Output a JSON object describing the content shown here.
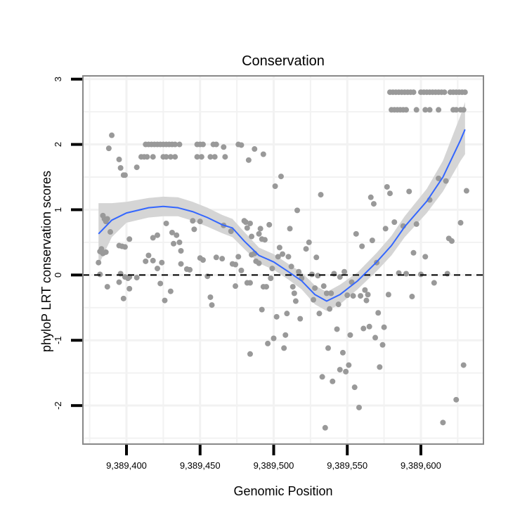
{
  "chart_data": {
    "type": "scatter",
    "title": "Conservation",
    "xlabel": "Genomic Position",
    "ylabel": "phyloP LRT conservation scores",
    "xlim": [
      9389370.4,
      9389642.5
    ],
    "ylim": [
      -2.59,
      3.05
    ],
    "x_ticks": [
      9389400,
      9389450,
      9389500,
      9389550,
      9389600
    ],
    "x_tick_labels": [
      "9,389,400",
      "9,389,450",
      "9,389,500",
      "9,389,550",
      "9,389,600"
    ],
    "y_ticks": [
      -2,
      -1,
      0,
      1,
      2,
      3
    ],
    "y_tick_labels": [
      "-2",
      "-1",
      "0",
      "1",
      "2",
      "3"
    ],
    "grid": true,
    "reference_line": {
      "y": 0,
      "style": "dashed",
      "color": "#000000"
    },
    "colors": {
      "points": "#999999",
      "smooth": "#3366FF",
      "band": "#D3D3D3",
      "border": "#888888"
    },
    "points": [
      [
        9389413,
        2.0
      ],
      [
        9389415,
        2.0
      ],
      [
        9389417,
        2.0
      ],
      [
        9389419,
        2.0
      ],
      [
        9389421,
        2.0
      ],
      [
        9389423,
        2.0
      ],
      [
        9389425,
        2.0
      ],
      [
        9389427,
        2.0
      ],
      [
        9389429,
        2.0
      ],
      [
        9389431,
        2.0
      ],
      [
        9389433,
        2.0
      ],
      [
        9389436,
        2.0
      ],
      [
        9389448,
        2.0
      ],
      [
        9389450,
        2.0
      ],
      [
        9389452,
        2.0
      ],
      [
        9389459,
        2.0
      ],
      [
        9389461,
        2.0
      ],
      [
        9389466,
        1.96
      ],
      [
        9389476,
        2.0
      ],
      [
        9389478,
        1.99
      ],
      [
        9389410,
        1.81
      ],
      [
        9389412,
        1.81
      ],
      [
        9389414,
        1.81
      ],
      [
        9389418,
        1.81
      ],
      [
        9389425,
        1.81
      ],
      [
        9389427,
        1.81
      ],
      [
        9389430,
        1.81
      ],
      [
        9389433,
        1.81
      ],
      [
        9389448,
        1.81
      ],
      [
        9389451,
        1.81
      ],
      [
        9389457,
        1.81
      ],
      [
        9389460,
        1.81
      ],
      [
        9389467,
        1.81
      ],
      [
        9389487,
        1.93
      ],
      [
        9389493,
        1.85
      ],
      [
        9389483,
        1.76
      ],
      [
        9389390,
        2.14
      ],
      [
        9389388,
        1.94
      ],
      [
        9389395,
        1.77
      ],
      [
        9389396,
        1.64
      ],
      [
        9389398,
        1.53
      ],
      [
        9389399,
        1.53
      ],
      [
        9389407,
        1.65
      ],
      [
        9389384,
        0.91
      ],
      [
        9389385,
        0.86
      ],
      [
        9389387,
        0.86
      ],
      [
        9389386,
        0.82
      ],
      [
        9389389,
        0.66
      ],
      [
        9389383,
        0.4
      ],
      [
        9389382,
        0.36
      ],
      [
        9389384,
        0.33
      ],
      [
        9389386,
        0.35
      ],
      [
        9389381,
        0.19
      ],
      [
        9389382,
        0.01
      ],
      [
        9389387,
        -0.18
      ],
      [
        9389395,
        0.45
      ],
      [
        9389397,
        0.44
      ],
      [
        9389399,
        0.43
      ],
      [
        9389402,
        0.55
      ],
      [
        9389396,
        0.02
      ],
      [
        9389399,
        -0.03
      ],
      [
        9389401,
        -0.05
      ],
      [
        9389402,
        -0.03
      ],
      [
        9389395,
        -0.11
      ],
      [
        9389398,
        -0.36
      ],
      [
        9389402,
        -0.21
      ],
      [
        9389407,
        -0.04
      ],
      [
        9389413,
        0.21
      ],
      [
        9389418,
        0.22
      ],
      [
        9389415,
        0.3
      ],
      [
        9389418,
        0.57
      ],
      [
        9389421,
        0.61
      ],
      [
        9389427,
        0.79
      ],
      [
        9389431,
        0.65
      ],
      [
        9389434,
        0.61
      ],
      [
        9389436,
        0.5
      ],
      [
        9389432,
        0.48
      ],
      [
        9389437,
        0.37
      ],
      [
        9389424,
        0.19
      ],
      [
        9389423,
        -0.13
      ],
      [
        9389426,
        -0.39
      ],
      [
        9389421,
        0.1
      ],
      [
        9389430,
        -0.25
      ],
      [
        9389437,
        0.17
      ],
      [
        9389441,
        0.09
      ],
      [
        9389443,
        0.08
      ],
      [
        9389445,
        0.83
      ],
      [
        9389446,
        0.7
      ],
      [
        9389450,
        0.82
      ],
      [
        9389450,
        0.26
      ],
      [
        9389452,
        0.23
      ],
      [
        9389455,
        -0.02
      ],
      [
        9389457,
        -0.34
      ],
      [
        9389458,
        -0.46
      ],
      [
        9389461,
        0.27
      ],
      [
        9389465,
        0.25
      ],
      [
        9389466,
        0.76
      ],
      [
        9389471,
        0.67
      ],
      [
        9389472,
        0.17
      ],
      [
        9389474,
        0.16
      ],
      [
        9389476,
        0.28
      ],
      [
        9389478,
        0.07
      ],
      [
        9389474,
        -0.17
      ],
      [
        9389480,
        0.83
      ],
      [
        9389481,
        0.81
      ],
      [
        9389482,
        0.72
      ],
      [
        9389484,
        0.79
      ],
      [
        9389485,
        0.59
      ],
      [
        9389487,
        0.33
      ],
      [
        9389484,
        -0.12
      ],
      [
        9389488,
        0.21
      ],
      [
        9389490,
        0.18
      ],
      [
        9389490,
        0.63
      ],
      [
        9389492,
        0.55
      ],
      [
        9389493,
        -0.18
      ],
      [
        9389505,
        1.51
      ],
      [
        9389501,
        1.36
      ],
      [
        9389532,
        1.23
      ],
      [
        9389516,
        0.99
      ],
      [
        9389497,
        0.77
      ],
      [
        9389511,
        0.71
      ],
      [
        9389491,
        0.71
      ],
      [
        9389494,
        0.54
      ],
      [
        9389485,
        0.31
      ],
      [
        9389504,
        0.42
      ],
      [
        9389506,
        0.32
      ],
      [
        9389510,
        0.28
      ],
      [
        9389503,
        0.28
      ],
      [
        9389522,
        0.4
      ],
      [
        9389524,
        0.5
      ],
      [
        9389529,
        0.27
      ],
      [
        9389512,
        0.13
      ],
      [
        9389499,
        0.1
      ],
      [
        9389517,
        0.05
      ],
      [
        9389519,
        -0.05
      ],
      [
        9389526,
        0.01
      ],
      [
        9389530,
        -0.01
      ],
      [
        9389498,
        -0.05
      ],
      [
        9389482,
        -0.12
      ],
      [
        9389495,
        -0.18
      ],
      [
        9389513,
        -0.18
      ],
      [
        9389514,
        -0.28
      ],
      [
        9389515,
        -0.4
      ],
      [
        9389528,
        -0.2
      ],
      [
        9389534,
        -0.17
      ],
      [
        9389536,
        -0.28
      ],
      [
        9389539,
        -0.28
      ],
      [
        9389527,
        -0.38
      ],
      [
        9389531,
        -0.59
      ],
      [
        9389538,
        -0.52
      ],
      [
        9389544,
        -0.45
      ],
      [
        9389541,
        0.02
      ],
      [
        9389545,
        -0.03
      ],
      [
        9389548,
        0.05
      ],
      [
        9389553,
        -0.11
      ],
      [
        9389550,
        -0.31
      ],
      [
        9389554,
        -0.32
      ],
      [
        9389559,
        -0.32
      ],
      [
        9389562,
        -0.23
      ],
      [
        9389564,
        -0.3
      ],
      [
        9389563,
        -0.39
      ],
      [
        9389570,
        0.19
      ],
      [
        9389560,
        0.44
      ],
      [
        9389556,
        0.63
      ],
      [
        9389567,
        0.53
      ],
      [
        9389566,
        1.19
      ],
      [
        9389568,
        1.09
      ],
      [
        9389577,
        1.35
      ],
      [
        9389579,
        1.25
      ],
      [
        9389576,
        0.71
      ],
      [
        9389582,
        0.81
      ],
      [
        9389588,
        0.75
      ],
      [
        9389592,
        1.28
      ],
      [
        9389597,
        0.78
      ],
      [
        9389595,
        0.34
      ],
      [
        9389603,
        0.28
      ],
      [
        9389585,
        0.03
      ],
      [
        9389590,
        0.02
      ],
      [
        9389600,
        0.01
      ],
      [
        9389618,
        0.02
      ],
      [
        9389609,
        -0.12
      ],
      [
        9389578,
        -0.3
      ],
      [
        9389594,
        -0.33
      ],
      [
        9389606,
        1.15
      ],
      [
        9389612,
        1.48
      ],
      [
        9389617,
        1.44
      ],
      [
        9389631,
        1.29
      ],
      [
        9389627,
        0.8
      ],
      [
        9389619,
        0.56
      ],
      [
        9389621,
        0.52
      ],
      [
        9389492,
        -0.53
      ],
      [
        9389502,
        -0.64
      ],
      [
        9389509,
        -0.59
      ],
      [
        9389518,
        -0.67
      ],
      [
        9389508,
        -0.92
      ],
      [
        9389500,
        -0.97
      ],
      [
        9389496,
        -1.05
      ],
      [
        9389507,
        -1.12
      ],
      [
        9389484,
        -1.21
      ],
      [
        9389543,
        -0.83
      ],
      [
        9389552,
        -0.92
      ],
      [
        9389537,
        -1.12
      ],
      [
        9389547,
        -1.19
      ],
      [
        9389551,
        -1.38
      ],
      [
        9389545,
        -1.45
      ],
      [
        9389549,
        -1.48
      ],
      [
        9389533,
        -1.56
      ],
      [
        9389540,
        -1.63
      ],
      [
        9389555,
        -1.72
      ],
      [
        9389558,
        -2.03
      ],
      [
        9389535,
        -2.34
      ],
      [
        9389561,
        -0.82
      ],
      [
        9389565,
        -0.79
      ],
      [
        9389571,
        -0.58
      ],
      [
        9389575,
        -0.8
      ],
      [
        9389569,
        -0.96
      ],
      [
        9389574,
        -1.07
      ],
      [
        9389572,
        -1.41
      ],
      [
        9389629,
        -1.38
      ],
      [
        9389624,
        -1.91
      ],
      [
        9389615,
        -2.26
      ],
      [
        9389579,
        2.8
      ],
      [
        9389581,
        2.8
      ],
      [
        9389583,
        2.8
      ],
      [
        9389585,
        2.8
      ],
      [
        9389587,
        2.8
      ],
      [
        9389589,
        2.8
      ],
      [
        9389591,
        2.8
      ],
      [
        9389593,
        2.8
      ],
      [
        9389595,
        2.8
      ],
      [
        9389600,
        2.8
      ],
      [
        9389602,
        2.8
      ],
      [
        9389604,
        2.8
      ],
      [
        9389606,
        2.8
      ],
      [
        9389608,
        2.8
      ],
      [
        9389610,
        2.8
      ],
      [
        9389612,
        2.8
      ],
      [
        9389614,
        2.8
      ],
      [
        9389616,
        2.8
      ],
      [
        9389620,
        2.8
      ],
      [
        9389622,
        2.8
      ],
      [
        9389624,
        2.8
      ],
      [
        9389626,
        2.8
      ],
      [
        9389628,
        2.8
      ],
      [
        9389630,
        2.8
      ],
      [
        9389580,
        2.53
      ],
      [
        9389582,
        2.53
      ],
      [
        9389584,
        2.53
      ],
      [
        9389586,
        2.53
      ],
      [
        9389588,
        2.53
      ],
      [
        9389590,
        2.53
      ],
      [
        9389597,
        2.53
      ],
      [
        9389603,
        2.53
      ],
      [
        9389606,
        2.53
      ],
      [
        9389612,
        2.53
      ],
      [
        9389622,
        2.53
      ],
      [
        9389624,
        2.53
      ],
      [
        9389627,
        2.53
      ],
      [
        9389629,
        2.53
      ]
    ],
    "smooth": {
      "x": [
        9389381,
        9389390,
        9389400,
        9389415,
        9389425,
        9389435,
        9389445,
        9389455,
        9389465,
        9389472,
        9389480,
        9389490,
        9389500,
        9389510,
        9389519,
        9389528,
        9389536,
        9389545,
        9389557,
        9389570,
        9389580,
        9389589,
        9389604,
        9389615,
        9389627,
        9389630
      ],
      "y": [
        0.63,
        0.84,
        0.95,
        1.03,
        1.05,
        1.03,
        0.97,
        0.88,
        0.77,
        0.72,
        0.52,
        0.3,
        0.2,
        0.05,
        -0.09,
        -0.3,
        -0.4,
        -0.3,
        -0.09,
        0.2,
        0.45,
        0.74,
        1.13,
        1.5,
        2.07,
        2.23
      ],
      "lower": [
        0.15,
        0.58,
        0.8,
        0.88,
        0.9,
        0.9,
        0.83,
        0.74,
        0.64,
        0.58,
        0.4,
        0.18,
        0.08,
        -0.07,
        -0.22,
        -0.45,
        -0.55,
        -0.45,
        -0.22,
        0.06,
        0.3,
        0.58,
        0.95,
        1.28,
        1.75,
        1.85
      ],
      "upper": [
        1.1,
        1.1,
        1.12,
        1.18,
        1.2,
        1.19,
        1.12,
        1.03,
        0.92,
        0.86,
        0.66,
        0.42,
        0.32,
        0.17,
        0.04,
        -0.16,
        -0.26,
        -0.15,
        0.04,
        0.34,
        0.6,
        0.9,
        1.32,
        1.75,
        2.45,
        2.65
      ]
    }
  }
}
